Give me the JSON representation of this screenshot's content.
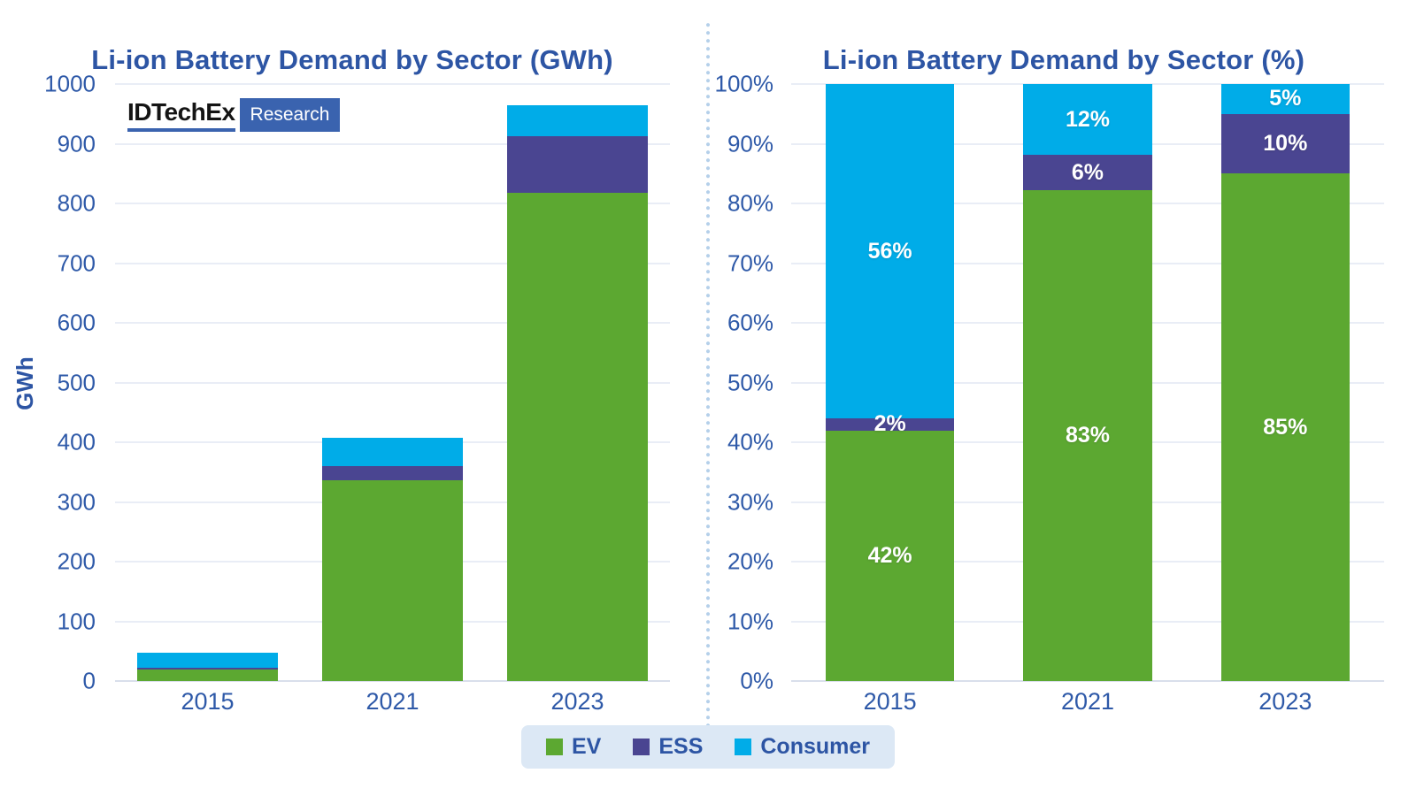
{
  "page": {
    "background": "#FFFFFF"
  },
  "logo": {
    "name": "IDTechEx",
    "research": "Research"
  },
  "colors": {
    "ev_green": "#5CA831",
    "ess_purple": "#4A4591",
    "consumer_cyan": "#00ACE8",
    "title_blue": "#2D55A4",
    "axis_blue": "#2E59A8",
    "gridline": "#E9EDF6",
    "legend_background": "#DCE8F5",
    "divider_dot": "#B5D0EA",
    "logo_blue": "#3A63AF",
    "segment_label": "#FFFFFF"
  },
  "legend": {
    "items": [
      {
        "label": "EV",
        "color": "#5CA831"
      },
      {
        "label": "ESS",
        "color": "#4A4591"
      },
      {
        "label": "Consumer",
        "color": "#00ACE8"
      }
    ]
  },
  "chart_data": [
    {
      "type": "bar",
      "stacked": true,
      "title": "Li-ion Battery Demand by Sector (GWh)",
      "xlabel": "",
      "ylabel": "GWh",
      "categories": [
        "2015",
        "2021",
        "2023"
      ],
      "series": [
        {
          "name": "EV",
          "color": "#5CA831",
          "values": [
            19,
            336,
            818
          ]
        },
        {
          "name": "ESS",
          "color": "#4A4591",
          "values": [
            1,
            24,
            94
          ]
        },
        {
          "name": "Consumer",
          "color": "#00ACE8",
          "values": [
            25,
            48,
            52
          ]
        }
      ],
      "totals_gwh": [
        45,
        408,
        964
      ],
      "ylim": [
        0,
        1000
      ],
      "yticks": [
        "0",
        "100",
        "200",
        "300",
        "400",
        "500",
        "600",
        "700",
        "800",
        "900",
        "1000"
      ],
      "grid": true,
      "legend_position": "bottom"
    },
    {
      "type": "bar",
      "stacked": true,
      "percent": true,
      "title": "Li-ion Battery Demand by Sector (%)",
      "xlabel": "",
      "ylabel": "",
      "categories": [
        "2015",
        "2021",
        "2023"
      ],
      "series": [
        {
          "name": "EV",
          "color": "#5CA831",
          "values": [
            42,
            83,
            85
          ],
          "labels": [
            "42%",
            "83%",
            "85%"
          ]
        },
        {
          "name": "ESS",
          "color": "#4A4591",
          "values": [
            2,
            6,
            10
          ],
          "labels": [
            "2%",
            "6%",
            "10%"
          ]
        },
        {
          "name": "Consumer",
          "color": "#00ACE8",
          "values": [
            56,
            12,
            5
          ],
          "labels": [
            "56%",
            "12%",
            "5%"
          ]
        }
      ],
      "ylim": [
        0,
        100
      ],
      "yticks": [
        "0%",
        "10%",
        "20%",
        "30%",
        "40%",
        "50%",
        "60%",
        "70%",
        "80%",
        "90%",
        "100%"
      ],
      "grid": true,
      "legend_position": "bottom"
    }
  ]
}
